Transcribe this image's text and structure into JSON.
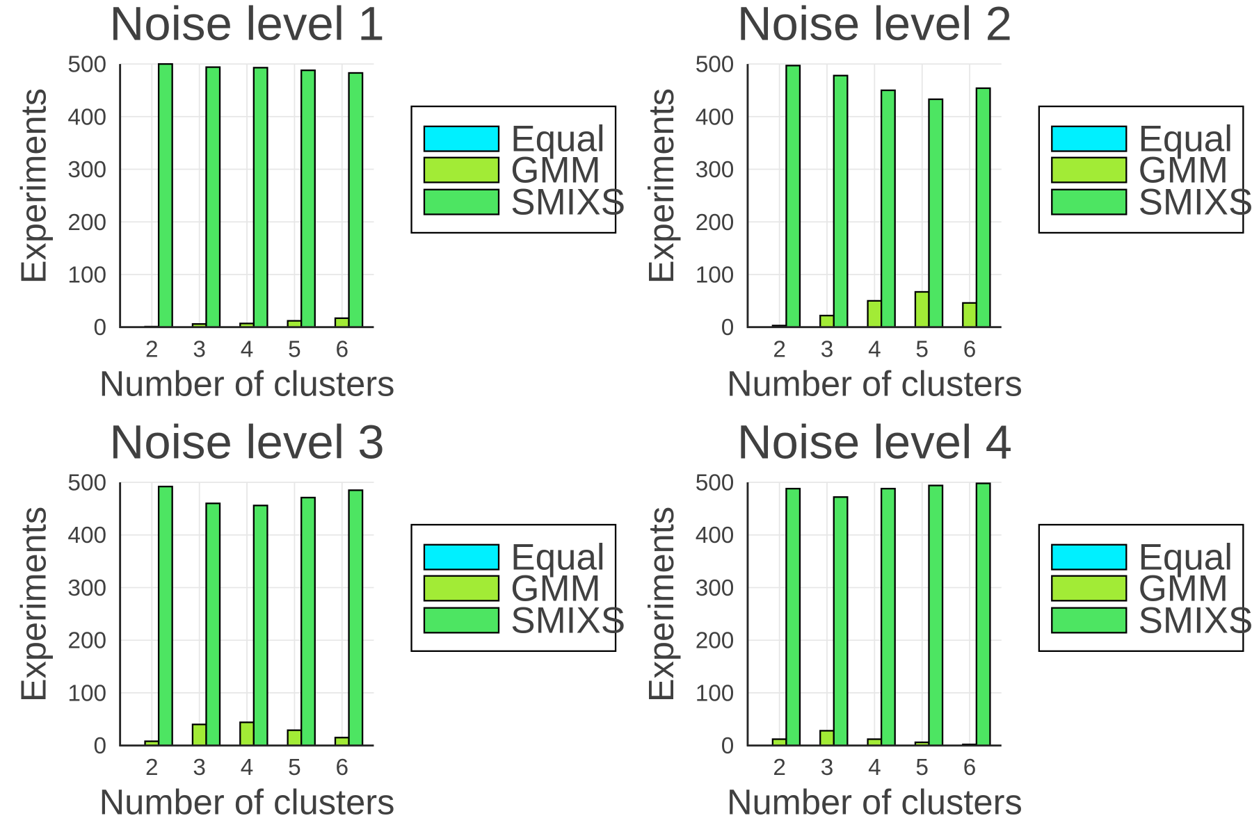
{
  "chart_data": [
    {
      "type": "bar",
      "title": "Noise level 1",
      "xlabel": "Number of clusters",
      "ylabel": "Experiments",
      "categories": [
        "2",
        "3",
        "4",
        "5",
        "6"
      ],
      "ylim": [
        0,
        500
      ],
      "yticks": [
        "0",
        "100",
        "200",
        "300",
        "400",
        "500"
      ],
      "legend_position": "right",
      "grid": true,
      "series": [
        {
          "name": "Equal",
          "color": "#00F0FF",
          "values": [
            0,
            0,
            0,
            0,
            0
          ]
        },
        {
          "name": "GMM",
          "color": "#A2EB36",
          "values": [
            1,
            6,
            7,
            12,
            17
          ]
        },
        {
          "name": "SMIXS",
          "color": "#4DE562",
          "values": [
            500,
            494,
            493,
            488,
            483
          ]
        }
      ]
    },
    {
      "type": "bar",
      "title": "Noise level 2",
      "xlabel": "Number of clusters",
      "ylabel": "Experiments",
      "categories": [
        "2",
        "3",
        "4",
        "5",
        "6"
      ],
      "ylim": [
        0,
        500
      ],
      "yticks": [
        "0",
        "100",
        "200",
        "300",
        "400",
        "500"
      ],
      "legend_position": "right",
      "grid": true,
      "series": [
        {
          "name": "Equal",
          "color": "#00F0FF",
          "values": [
            0,
            0,
            0,
            0,
            0
          ]
        },
        {
          "name": "GMM",
          "color": "#A2EB36",
          "values": [
            3,
            22,
            50,
            67,
            46
          ]
        },
        {
          "name": "SMIXS",
          "color": "#4DE562",
          "values": [
            497,
            478,
            450,
            433,
            454
          ]
        }
      ]
    },
    {
      "type": "bar",
      "title": "Noise level 3",
      "xlabel": "Number of clusters",
      "ylabel": "Experiments",
      "categories": [
        "2",
        "3",
        "4",
        "5",
        "6"
      ],
      "ylim": [
        0,
        500
      ],
      "yticks": [
        "0",
        "100",
        "200",
        "300",
        "400",
        "500"
      ],
      "legend_position": "right",
      "grid": true,
      "series": [
        {
          "name": "Equal",
          "color": "#00F0FF",
          "values": [
            0,
            0,
            0,
            0,
            0
          ]
        },
        {
          "name": "GMM",
          "color": "#A2EB36",
          "values": [
            8,
            40,
            44,
            29,
            15
          ]
        },
        {
          "name": "SMIXS",
          "color": "#4DE562",
          "values": [
            492,
            460,
            456,
            471,
            485
          ]
        }
      ]
    },
    {
      "type": "bar",
      "title": "Noise level 4",
      "xlabel": "Number of clusters",
      "ylabel": "Experiments",
      "categories": [
        "2",
        "3",
        "4",
        "5",
        "6"
      ],
      "ylim": [
        0,
        500
      ],
      "yticks": [
        "0",
        "100",
        "200",
        "300",
        "400",
        "500"
      ],
      "legend_position": "right",
      "grid": true,
      "series": [
        {
          "name": "Equal",
          "color": "#00F0FF",
          "values": [
            0,
            0,
            0,
            0,
            0
          ]
        },
        {
          "name": "GMM",
          "color": "#A2EB36",
          "values": [
            12,
            28,
            12,
            6,
            2
          ]
        },
        {
          "name": "SMIXS",
          "color": "#4DE562",
          "values": [
            488,
            472,
            488,
            494,
            498
          ]
        }
      ]
    }
  ]
}
